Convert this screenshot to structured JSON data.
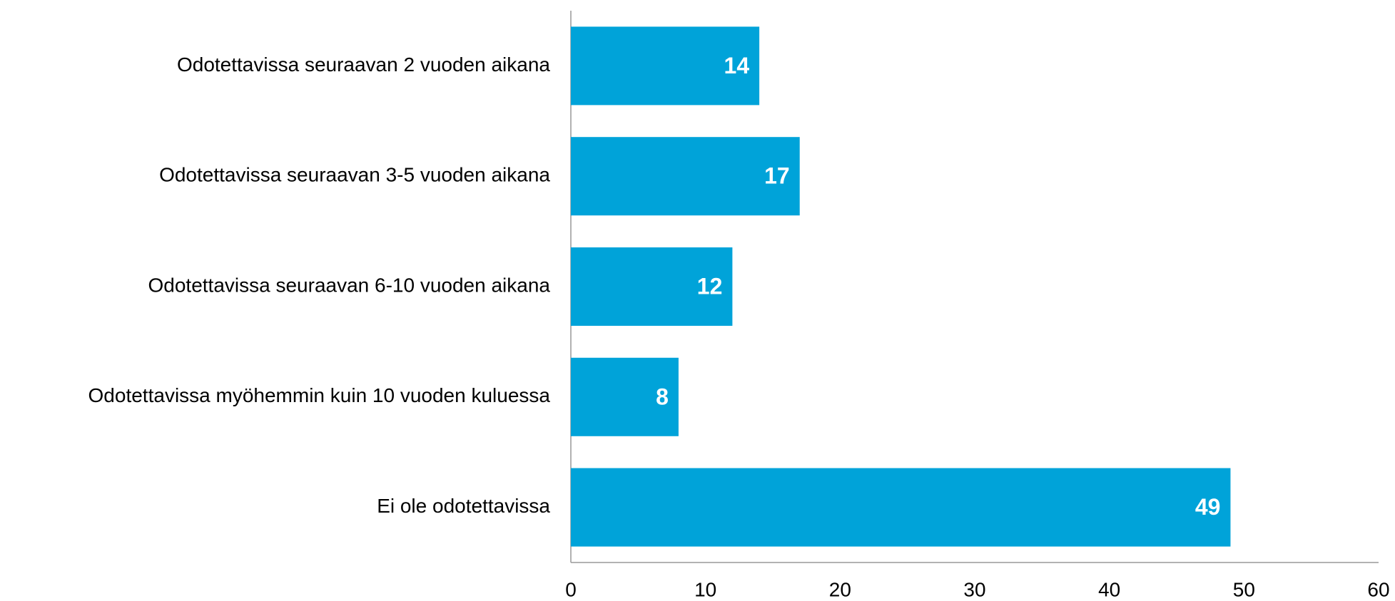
{
  "chart_data": {
    "type": "bar",
    "orientation": "horizontal",
    "categories": [
      "Odotettavissa seuraavan 2 vuoden aikana",
      "Odotettavissa seuraavan 3-5 vuoden aikana",
      "Odotettavissa seuraavan 6-10 vuoden aikana",
      "Odotettavissa myöhemmin kuin 10 vuoden kuluessa",
      "Ei ole odotettavissa"
    ],
    "values": [
      14,
      17,
      12,
      8,
      49
    ],
    "color": "#00a3d9",
    "xlim": [
      0,
      60
    ],
    "xticks": [
      0,
      10,
      20,
      30,
      40,
      50,
      60
    ],
    "grid": false
  }
}
